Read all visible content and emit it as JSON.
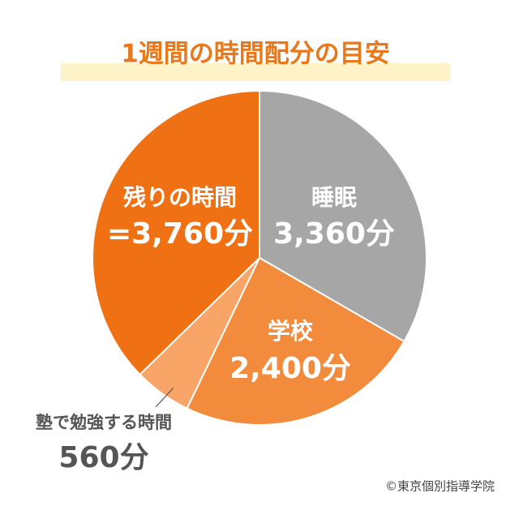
{
  "chart_data": {
    "type": "pie",
    "title": "1週間の時間配分の目安",
    "categories": [
      "睡眠",
      "学校",
      "塾で勉強する時間",
      "残りの時間"
    ],
    "values": [
      3360,
      2400,
      560,
      3760
    ],
    "value_labels": [
      "3,360分",
      "2,400分",
      "560分",
      "=3,760分"
    ],
    "colors": [
      "#a6a6a6",
      "#f28c3c",
      "#f8a567",
      "#f07114"
    ],
    "credit": "©東京個別指導学院"
  }
}
